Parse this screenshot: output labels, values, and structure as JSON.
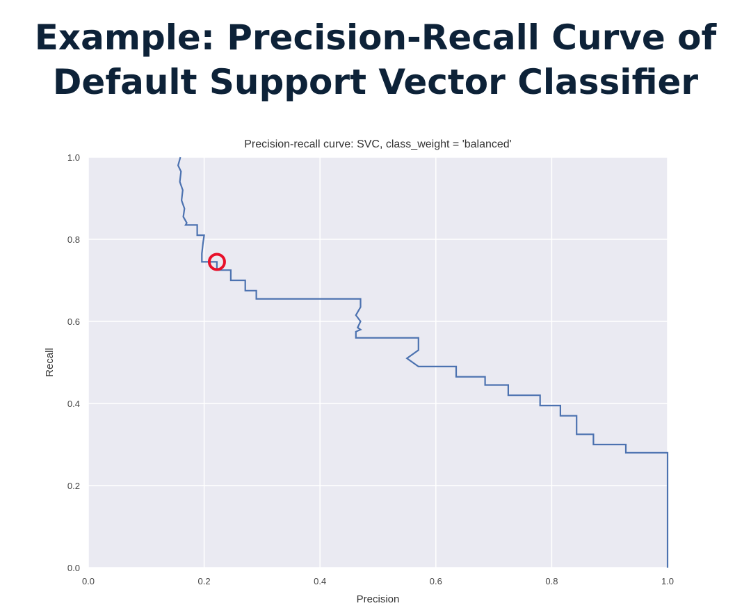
{
  "slide": {
    "title_line1": "Example: Precision-Recall Curve of",
    "title_line2": "Default Support Vector Classifier"
  },
  "chart_data": {
    "type": "line",
    "title": "Precision-recall curve: SVC, class_weight = 'balanced'",
    "xlabel": "Precision",
    "ylabel": "Recall",
    "xlim": [
      0.0,
      1.0
    ],
    "ylim": [
      0.0,
      1.0
    ],
    "xticks": [
      "0.0",
      "0.2",
      "0.4",
      "0.6",
      "0.8",
      "1.0"
    ],
    "yticks": [
      "0.0",
      "0.2",
      "0.4",
      "0.6",
      "0.8",
      "1.0"
    ],
    "grid": true,
    "background_color": "#eaeaf2",
    "line_color": "#4c72b0",
    "marker_color": "#e8102a",
    "series": [
      {
        "x": [
          0.159,
          0.155,
          0.16,
          0.158,
          0.163,
          0.161,
          0.166,
          0.164,
          0.17,
          0.168,
          0.17,
          0.188,
          0.188,
          0.2,
          0.198,
          0.196,
          0.196,
          0.222,
          0.222,
          0.246,
          0.246,
          0.271,
          0.271,
          0.29,
          0.29,
          0.47,
          0.47,
          0.462,
          0.47,
          0.465,
          0.47,
          0.462,
          0.462,
          0.475,
          0.475,
          0.57,
          0.57,
          0.55,
          0.57,
          0.57,
          0.635,
          0.635,
          0.685,
          0.685,
          0.725,
          0.725,
          0.78,
          0.78,
          0.815,
          0.815,
          0.843,
          0.843,
          0.872,
          0.872,
          0.928,
          0.928,
          1.0,
          1.0
        ],
        "y": [
          1.0,
          0.98,
          0.965,
          0.94,
          0.92,
          0.895,
          0.875,
          0.855,
          0.84,
          0.835,
          0.835,
          0.835,
          0.81,
          0.81,
          0.79,
          0.765,
          0.745,
          0.745,
          0.725,
          0.725,
          0.7,
          0.7,
          0.675,
          0.675,
          0.655,
          0.655,
          0.635,
          0.615,
          0.6,
          0.585,
          0.58,
          0.575,
          0.56,
          0.56,
          0.56,
          0.56,
          0.53,
          0.51,
          0.49,
          0.49,
          0.49,
          0.465,
          0.465,
          0.445,
          0.445,
          0.42,
          0.42,
          0.395,
          0.395,
          0.37,
          0.37,
          0.325,
          0.325,
          0.3,
          0.3,
          0.28,
          0.28,
          0.0
        ]
      }
    ],
    "marker": {
      "x": 0.222,
      "y": 0.745,
      "shape": "circle"
    }
  }
}
